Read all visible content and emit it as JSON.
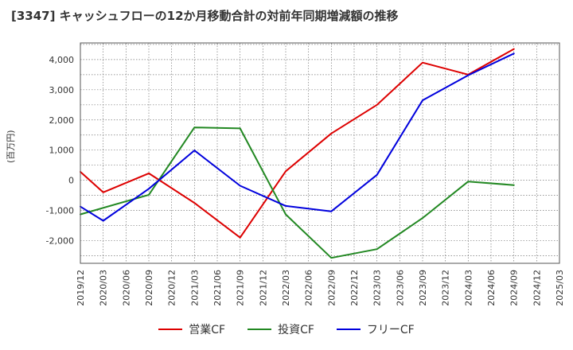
{
  "chart_data": {
    "type": "line",
    "title": "[3347]  キャッシュフローの12か月移動合計の対前年同期増減額の推移",
    "ylabel": "(百万円)",
    "xlabel": "",
    "ylim": [
      -2750,
      4550
    ],
    "yticks": [
      -2000,
      -1000,
      0,
      1000,
      2000,
      3000,
      4000
    ],
    "ytick_labels": [
      "-2,000",
      "-1,000",
      "0",
      "1,000",
      "2,000",
      "3,000",
      "4,000"
    ],
    "categories": [
      "2019/12",
      "2020/03",
      "2020/06",
      "2020/09",
      "2020/12",
      "2021/03",
      "2021/06",
      "2021/09",
      "2021/12",
      "2022/03",
      "2022/06",
      "2022/09",
      "2022/12",
      "2023/03",
      "2023/06",
      "2023/09",
      "2023/12",
      "2024/03",
      "2024/06",
      "2024/09",
      "2024/12",
      "2025/03"
    ],
    "grid": true,
    "legend_position": "bottom-center",
    "series": [
      {
        "name": "営業CF",
        "color": "#dd0000",
        "values": [
          280,
          -400,
          null,
          230,
          null,
          -750,
          null,
          -1900,
          null,
          300,
          null,
          1550,
          null,
          2500,
          null,
          3900,
          null,
          3500,
          null,
          4350,
          null,
          null
        ]
      },
      {
        "name": "投資CF",
        "color": "#228822",
        "values": [
          -1130,
          null,
          null,
          -480,
          null,
          1750,
          null,
          1720,
          null,
          -1130,
          null,
          -2570,
          null,
          -2280,
          null,
          -1250,
          null,
          -40,
          null,
          -160,
          null,
          null
        ]
      },
      {
        "name": "フリーCF",
        "color": "#0000dd",
        "values": [
          -870,
          -1340,
          null,
          -280,
          null,
          990,
          null,
          -180,
          null,
          -850,
          null,
          -1030,
          null,
          180,
          null,
          2650,
          null,
          3480,
          null,
          4200,
          null,
          null
        ]
      }
    ]
  }
}
